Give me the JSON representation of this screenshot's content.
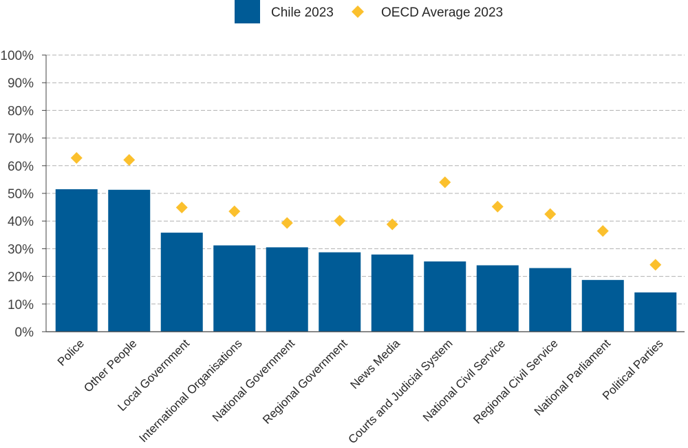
{
  "chart_data": {
    "type": "bar",
    "title": "",
    "xlabel": "",
    "ylabel": "",
    "ylim": [
      0,
      100
    ],
    "y_ticks": [
      "0%",
      "10%",
      "20%",
      "30%",
      "40%",
      "50%",
      "60%",
      "70%",
      "80%",
      "90%",
      "100%"
    ],
    "grid": true,
    "legend_position": "top-center",
    "categories": [
      "Police",
      "Other People",
      "Local Government",
      "International Organisations",
      "National Government",
      "Regional Government",
      "News Media",
      "Courts and Judicial System",
      "National Civil Service",
      "Regional Civil Service",
      "National Parliament",
      "Political Parties"
    ],
    "series": [
      {
        "name": "Chile 2023",
        "mark": "bar",
        "color": "#005b96",
        "values": [
          51.5,
          51.3,
          35.8,
          31.2,
          30.5,
          28.7,
          27.9,
          25.4,
          24.0,
          23.0,
          18.7,
          14.2
        ]
      },
      {
        "name": "OECD Average 2023",
        "mark": "diamond",
        "color": "#fbc02d",
        "values": [
          62.8,
          62.1,
          44.9,
          43.5,
          39.3,
          40.1,
          38.8,
          54.0,
          45.2,
          42.5,
          36.4,
          24.2
        ]
      }
    ]
  }
}
